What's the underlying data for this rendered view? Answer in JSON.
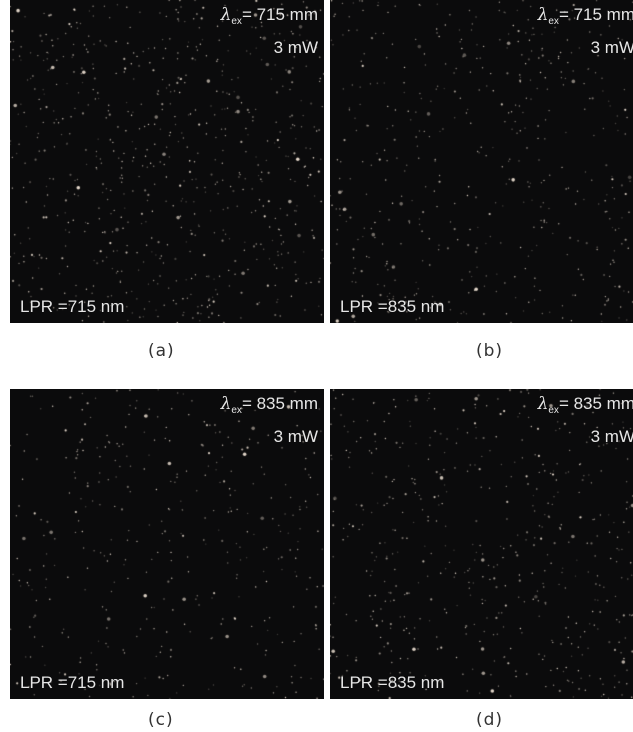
{
  "panels": [
    {
      "id": "a",
      "lambda": "λ",
      "lambda_sub": "ex",
      "excitation": "= 715 mm",
      "power": "3 mW",
      "filter": "LPR =715 nm",
      "caption": "(a)"
    },
    {
      "id": "b",
      "lambda": "λ",
      "lambda_sub": "ex",
      "excitation": "= 715 mm",
      "power": "3 mW",
      "filter": "LPR =835 nm",
      "caption": "(b)"
    },
    {
      "id": "c",
      "lambda": "λ",
      "lambda_sub": "ex",
      "excitation": "= 835 mm",
      "power": "3 mW",
      "filter": "LPR =715 nm",
      "caption": "(c)"
    },
    {
      "id": "d",
      "lambda": "λ",
      "lambda_sub": "ex",
      "excitation": "= 835 mm",
      "power": "3 mW",
      "filter": "LPR =835 nm",
      "caption": "(d)"
    }
  ],
  "colors": {
    "background": "#0b0b0c",
    "text": "#e6e6e6",
    "speck": "#f3e6d8"
  }
}
